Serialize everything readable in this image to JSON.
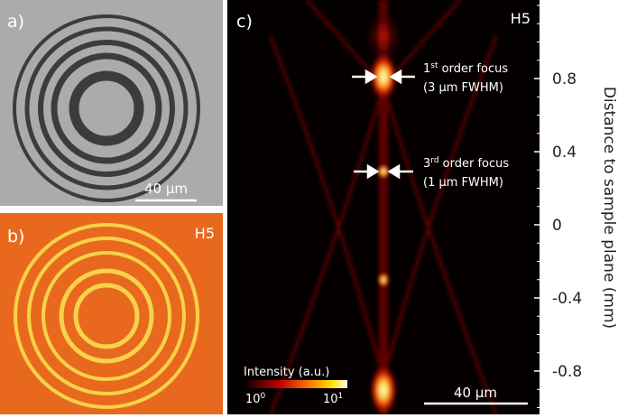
{
  "panels": {
    "a": {
      "label": "a)",
      "scale_bar": "40 μm"
    },
    "b": {
      "label": "b)",
      "sample": "H5"
    },
    "c": {
      "label": "c)",
      "sample": "H5",
      "annotations": [
        {
          "ordinal": "1",
          "suffix": "st",
          "text": " order focus",
          "note": "(3 μm FWHM)"
        },
        {
          "ordinal": "3",
          "suffix": "rd",
          "text": " order focus",
          "note": "(1 μm FWHM)"
        }
      ],
      "colorbar": {
        "label": "Intensity (a.u.)",
        "low": {
          "base": "10",
          "exponent": "0"
        },
        "high": {
          "base": "10",
          "exponent": "1"
        }
      },
      "scale_bar": "40 μm",
      "axis": {
        "label": "Distance to sample plane (mm)",
        "ticks": [
          0.8,
          0.4,
          0,
          -0.4,
          -0.8
        ]
      }
    }
  }
}
